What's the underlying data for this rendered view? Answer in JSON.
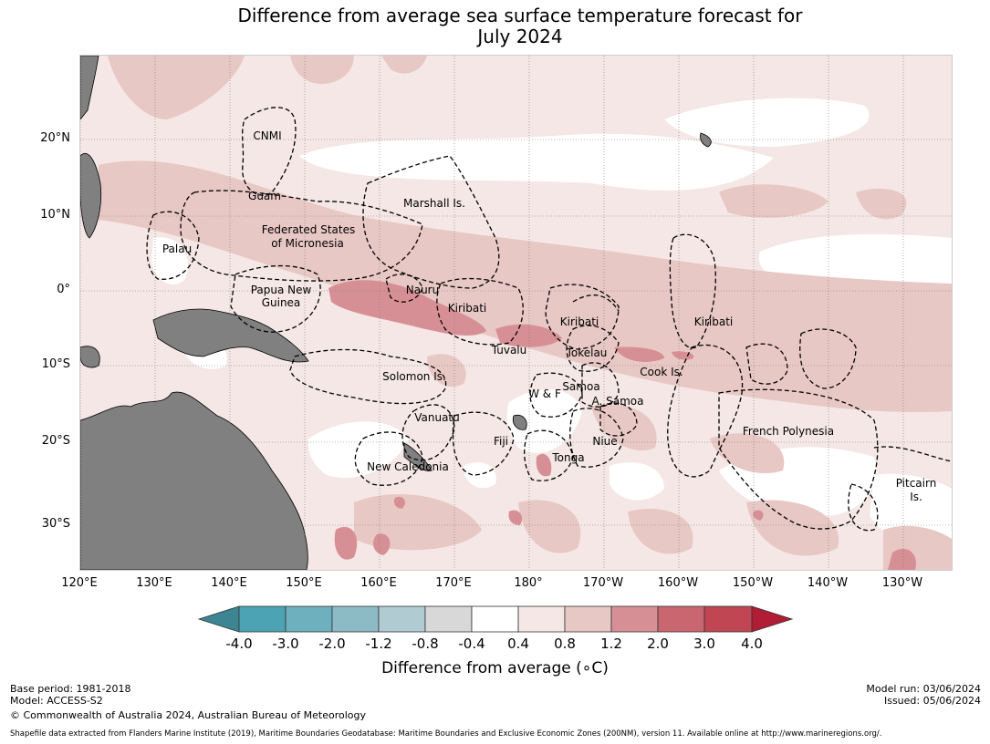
{
  "title": {
    "line1": "Difference from average sea surface temperature forecast for",
    "line2": "July 2024"
  },
  "colors": {
    "land": "#808080",
    "ocean_near_avg": "#ffffff",
    "scale": [
      "#3e8593",
      "#4ba3b4",
      "#6eb0bd",
      "#8dbbc5",
      "#b0cbd1",
      "#d8d8d8",
      "#ffffff",
      "#f4e7e5",
      "#e8c8c4",
      "#d78f96",
      "#ca6670",
      "#c04654",
      "#b01d35"
    ]
  },
  "map": {
    "latitude_labels": [
      "20°N",
      "10°N",
      "0°",
      "10°S",
      "20°S",
      "30°S"
    ],
    "longitude_labels": [
      "120°E",
      "130°E",
      "140°E",
      "150°E",
      "160°E",
      "170°E",
      "180°",
      "170°W",
      "160°W",
      "150°W",
      "140°W",
      "130°W"
    ],
    "region_labels": {
      "cnmi": "CNMI",
      "guam": "Guam",
      "marshall": "Marshall Is.",
      "fsm_1": "Federated States",
      "fsm_2": "of Micronesia",
      "palau": "Palau",
      "png_1": "Papua New",
      "png_2": "Guinea",
      "nauru": "Nauru",
      "kiribati_west": "Kiribati",
      "kiribati_central": "Kiribati",
      "kiribati_east": "Kiribati",
      "tuvalu": "Tuvalu",
      "tokelau": "Tokelau",
      "cook": "Cook Is.",
      "solomon": "Solomon Is.",
      "samoa": "Samoa",
      "wf": "W & F",
      "asamoa": "A. Samoa",
      "vanuatu": "Vanuatu",
      "fiji": "Fiji",
      "niue": "Niue",
      "tonga": "Tonga",
      "new_caledonia": "New Caledonia",
      "french_polynesia": "French Polynesia",
      "pitcairn_1": "Pitcairn",
      "pitcairn_2": "Is."
    }
  },
  "colorbar": {
    "ticks": [
      "-4.0",
      "-3.0",
      "-2.0",
      "-1.2",
      "-0.8",
      "-0.4",
      "0.4",
      "0.8",
      "1.2",
      "2.0",
      "3.0",
      "4.0"
    ],
    "title": "Difference from average (∘C)"
  },
  "footer": {
    "base_period": "Base period: 1981-2018",
    "model": "Model: ACCESS-S2",
    "copyright": "© Commonwealth of Australia 2024, Australian Bureau of Meteorology",
    "model_run": "Model run: 03/06/2024",
    "issued": "Issued: 05/06/2024",
    "shapefile_note": "Shapefile data extracted from Flanders Marine Institute (2019), Maritime Boundaries Geodatabase: Maritime Boundaries and Exclusive Economic Zones (200NM), version 11. Available online at http://www.marineregions.org/."
  }
}
